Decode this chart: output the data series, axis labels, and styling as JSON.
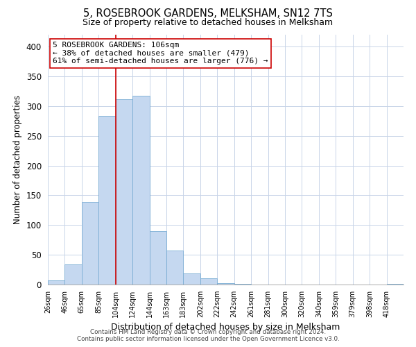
{
  "title": "5, ROSEBROOK GARDENS, MELKSHAM, SN12 7TS",
  "subtitle": "Size of property relative to detached houses in Melksham",
  "xlabel": "Distribution of detached houses by size in Melksham",
  "ylabel": "Number of detached properties",
  "bin_labels": [
    "26sqm",
    "46sqm",
    "65sqm",
    "85sqm",
    "104sqm",
    "124sqm",
    "144sqm",
    "163sqm",
    "183sqm",
    "202sqm",
    "222sqm",
    "242sqm",
    "261sqm",
    "281sqm",
    "300sqm",
    "320sqm",
    "340sqm",
    "359sqm",
    "379sqm",
    "398sqm",
    "418sqm"
  ],
  "bar_heights": [
    7,
    34,
    139,
    284,
    312,
    317,
    90,
    57,
    19,
    10,
    2,
    1,
    0,
    0,
    0,
    0,
    0,
    0,
    0,
    0,
    1
  ],
  "bar_color": "#c5d8f0",
  "bar_edge_color": "#7aadd4",
  "vline_x_bar_idx": 4,
  "vline_color": "#cc0000",
  "annotation_text": "5 ROSEBROOK GARDENS: 106sqm\n← 38% of detached houses are smaller (479)\n61% of semi-detached houses are larger (776) →",
  "annotation_box_edge_color": "#cc0000",
  "ylim": [
    0,
    420
  ],
  "yticks": [
    0,
    50,
    100,
    150,
    200,
    250,
    300,
    350,
    400
  ],
  "footer_line1": "Contains HM Land Registry data © Crown copyright and database right 2024.",
  "footer_line2": "Contains public sector information licensed under the Open Government Licence v3.0.",
  "bg_color": "#ffffff",
  "grid_color": "#c8d4e8"
}
